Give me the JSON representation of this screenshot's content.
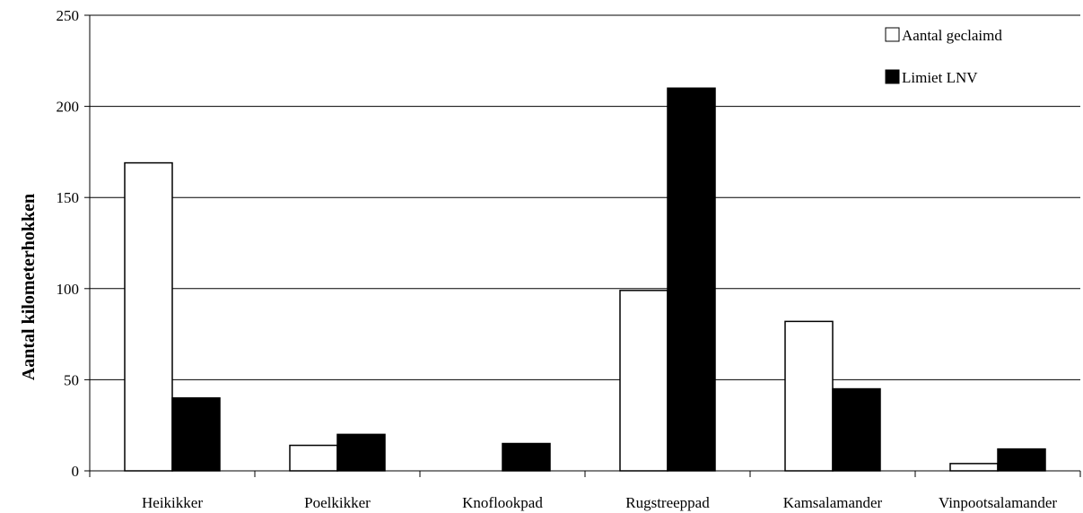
{
  "chart_data": {
    "type": "bar",
    "title": "",
    "xlabel": "",
    "ylabel": "Aantal kilometerhokken",
    "ylim": [
      0,
      250
    ],
    "yticks": [
      0,
      50,
      100,
      150,
      200,
      250
    ],
    "grid": true,
    "legend_position": "top-right",
    "categories": [
      "Heikikker",
      "Poelkikker",
      "Knoflookpad",
      "Rugstreeppad",
      "Kamsalamander",
      "Vinpootsalamander"
    ],
    "series": [
      {
        "name": "Aantal geclaimd",
        "color": "#ffffff",
        "values": [
          169,
          14,
          0,
          99,
          82,
          4
        ]
      },
      {
        "name": "Limiet LNV",
        "color": "#000000",
        "values": [
          40,
          20,
          15,
          210,
          45,
          12
        ]
      }
    ]
  }
}
